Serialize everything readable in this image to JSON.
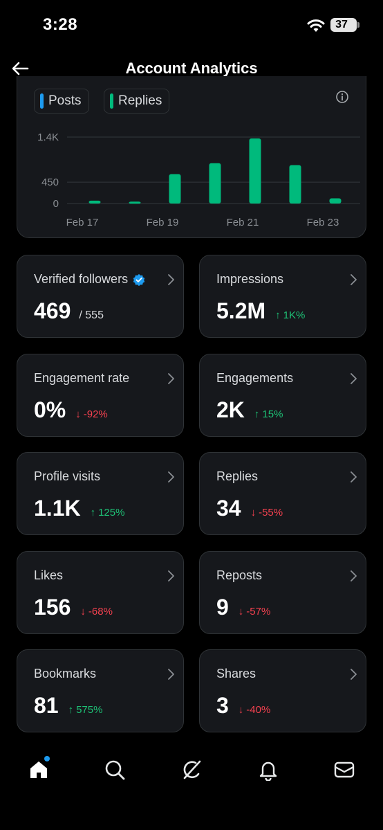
{
  "status": {
    "time": "3:28",
    "battery": "37"
  },
  "header": {
    "title": "Account Analytics"
  },
  "chart": {
    "legend": [
      {
        "label": "Posts",
        "color": "#1d9bf0"
      },
      {
        "label": "Replies",
        "color": "#00ba7c"
      }
    ]
  },
  "chart_data": {
    "type": "bar",
    "x": [
      "Feb 17",
      "Feb 18",
      "Feb 19",
      "Feb 20",
      "Feb 21",
      "Feb 22",
      "Feb 23"
    ],
    "x_tick_labels": [
      "Feb 17",
      "Feb 19",
      "Feb 21",
      "Feb 23"
    ],
    "y_tick_labels": [
      "0",
      "450",
      "1.4K"
    ],
    "y_ticks": [
      0,
      450,
      1400
    ],
    "ylim": [
      0,
      1400
    ],
    "series": [
      {
        "name": "Posts",
        "color": "#1d9bf0",
        "values": [
          0,
          0,
          0,
          0,
          0,
          0,
          0
        ]
      },
      {
        "name": "Replies",
        "color": "#00ba7c",
        "values": [
          60,
          40,
          620,
          850,
          1370,
          810,
          110
        ]
      }
    ],
    "grid": true,
    "legend": "top-left"
  },
  "metrics": [
    {
      "label": "Verified followers",
      "value": "469",
      "sub": "/ 555",
      "verified": true
    },
    {
      "label": "Impressions",
      "value": "5.2M",
      "change": "1K%",
      "direction": "up"
    },
    {
      "label": "Engagement rate",
      "value": "0%",
      "change": "-92%",
      "direction": "down"
    },
    {
      "label": "Engagements",
      "value": "2K",
      "change": "15%",
      "direction": "up"
    },
    {
      "label": "Profile visits",
      "value": "1.1K",
      "change": "125%",
      "direction": "up"
    },
    {
      "label": "Replies",
      "value": "34",
      "change": "-55%",
      "direction": "down"
    },
    {
      "label": "Likes",
      "value": "156",
      "change": "-68%",
      "direction": "down"
    },
    {
      "label": "Reposts",
      "value": "9",
      "change": "-57%",
      "direction": "down"
    },
    {
      "label": "Bookmarks",
      "value": "81",
      "change": "575%",
      "direction": "up"
    },
    {
      "label": "Shares",
      "value": "3",
      "change": "-40%",
      "direction": "down"
    }
  ],
  "nav": [
    "home-icon",
    "search-icon",
    "grok-icon",
    "bell-icon",
    "mail-icon"
  ],
  "colors": {
    "up": "#1ec276",
    "down": "#f4414f",
    "accent": "#1d9bf0",
    "bar": "#00ba7c"
  }
}
